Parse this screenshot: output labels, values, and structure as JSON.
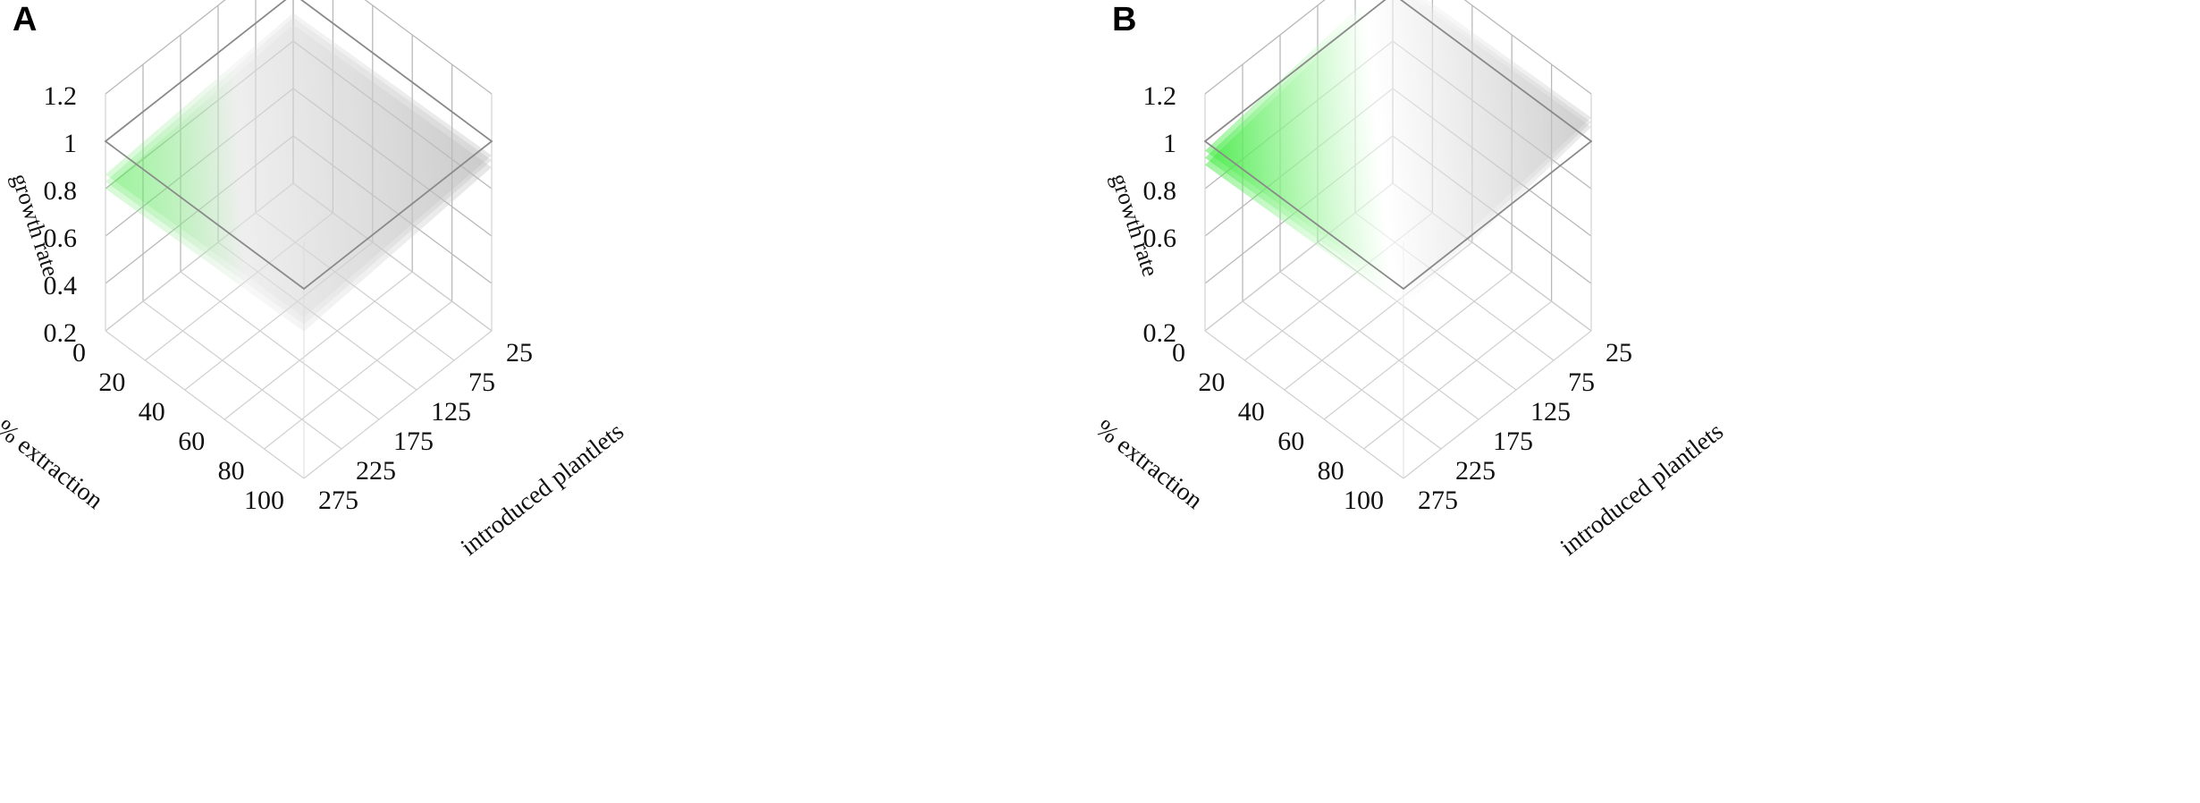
{
  "chart_data": [
    {
      "panel": "A",
      "type": "surface",
      "zlabel": "growth rate",
      "xlabel": "% extraction",
      "ylabel": "introduced plantlets",
      "z_ticks": [
        "0.2",
        "0.4",
        "0.6",
        "0.8",
        "1",
        "1.2"
      ],
      "x_ticks": [
        "0",
        "20",
        "40",
        "60",
        "80",
        "100"
      ],
      "y_ticks": [
        "25",
        "75",
        "125",
        "175",
        "225",
        "275"
      ],
      "zlim": [
        0.2,
        1.2
      ],
      "xlim": [
        0,
        100
      ],
      "ylim": [
        25,
        275
      ],
      "reference_plane": 1,
      "surfaces": [
        {
          "corners": {
            "x0_y25": 0.92,
            "x100_y25": 0.94,
            "x0_y275": 0.86,
            "x100_y275": 0.88
          }
        },
        {
          "corners": {
            "x0_y25": 0.9,
            "x100_y25": 0.92,
            "x0_y275": 0.83,
            "x100_y275": 0.85
          }
        },
        {
          "corners": {
            "x0_y25": 0.87,
            "x100_y25": 0.89,
            "x0_y275": 0.8,
            "x100_y275": 0.82
          }
        }
      ],
      "colors": {
        "high": "#2ee82e",
        "low": "#b4b4b4"
      }
    },
    {
      "panel": "B",
      "type": "surface",
      "zlabel": "growth rate",
      "xlabel": "% extraction",
      "ylabel": "introduced plantlets",
      "z_ticks": [
        "0.2",
        "0.6",
        "0.8",
        "1",
        "1.2"
      ],
      "x_ticks": [
        "0",
        "20",
        "40",
        "60",
        "80",
        "100"
      ],
      "y_ticks": [
        "25",
        "75",
        "125",
        "175",
        "225",
        "275"
      ],
      "zlim": [
        0.2,
        1.2
      ],
      "xlim": [
        0,
        100
      ],
      "ylim": [
        25,
        275
      ],
      "reference_plane": 1,
      "surfaces": [
        {
          "corners": {
            "x0_y25": 1.08,
            "x100_y25": 1.1,
            "x0_y275": 0.96,
            "x100_y275": 0.98
          }
        },
        {
          "corners": {
            "x0_y25": 1.06,
            "x100_y25": 1.08,
            "x0_y275": 0.93,
            "x100_y275": 0.95
          }
        },
        {
          "corners": {
            "x0_y25": 1.04,
            "x100_y25": 1.06,
            "x0_y275": 0.9,
            "x100_y275": 0.92
          }
        }
      ],
      "colors": {
        "high": "#2ee82e",
        "low": "#b4b4b4"
      }
    }
  ]
}
